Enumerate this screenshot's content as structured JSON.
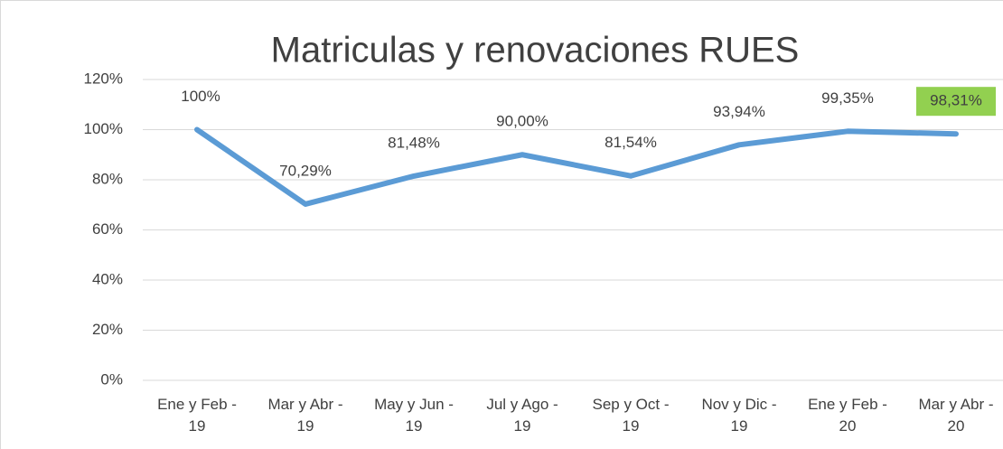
{
  "chart_data": {
    "type": "line",
    "title": "Matriculas y renovaciones RUES",
    "categories": [
      "Ene y Feb - 19",
      "Mar y Abr - 19",
      "May y Jun - 19",
      "Jul y Ago - 19",
      "Sep y Oct - 19",
      "Nov y Dic - 19",
      "Ene y Feb - 20",
      "Mar y Abr - 20"
    ],
    "series": [
      {
        "name": "Matriculas y renovaciones RUES",
        "color": "#5b9bd5",
        "values": [
          100,
          70.29,
          81.48,
          90,
          81.54,
          93.94,
          99.35,
          98.31
        ],
        "value_labels": [
          "100%",
          "70,29%",
          "81,48%",
          "90,00%",
          "81,54%",
          "93,94%",
          "99,35%",
          "98,31%"
        ]
      }
    ],
    "value_label_highlight": {
      "index": 7,
      "color": "#92d050"
    },
    "ylim": [
      0,
      120
    ],
    "yticks": [
      {
        "value": 0,
        "label": "0%"
      },
      {
        "value": 20,
        "label": "20%"
      },
      {
        "value": 40,
        "label": "40%"
      },
      {
        "value": 60,
        "label": "60%"
      },
      {
        "value": 80,
        "label": "80%"
      },
      {
        "value": 100,
        "label": "100%"
      },
      {
        "value": 120,
        "label": "120%"
      }
    ],
    "grid": true
  }
}
